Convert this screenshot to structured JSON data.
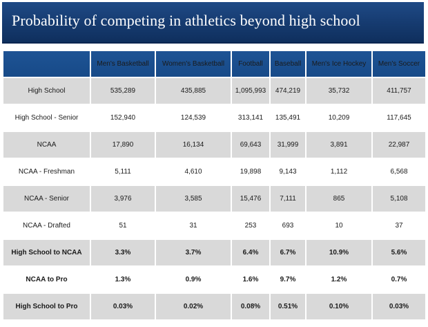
{
  "title": "Probability of competing in athletics beyond high school",
  "columns": [
    "",
    "Men's Basketball",
    "Women's Basketball",
    "Football",
    "Baseball",
    "Men's Ice Hockey",
    "Men's Soccer"
  ],
  "rows": [
    {
      "label": "High School",
      "values": [
        "535,289",
        "435,885",
        "1,095,993",
        "474,219",
        "35,732",
        "411,757"
      ]
    },
    {
      "label": "High School - Senior",
      "values": [
        "152,940",
        "124,539",
        "313,141",
        "135,491",
        "10,209",
        "117,645"
      ]
    },
    {
      "label": "NCAA",
      "values": [
        "17,890",
        "16,134",
        "69,643",
        "31,999",
        "3,891",
        "22,987"
      ]
    },
    {
      "label": "NCAA - Freshman",
      "values": [
        "5,111",
        "4,610",
        "19,898",
        "9,143",
        "1,112",
        "6,568"
      ]
    },
    {
      "label": "NCAA - Senior",
      "values": [
        "3,976",
        "3,585",
        "15,476",
        "7,111",
        "865",
        "5,108"
      ]
    },
    {
      "label": "NCAA - Drafted",
      "values": [
        "51",
        "31",
        "253",
        "693",
        "10",
        "37"
      ]
    },
    {
      "label": "High School to NCAA",
      "values": [
        "3.3%",
        "3.7%",
        "6.4%",
        "6.7%",
        "10.9%",
        "5.6%"
      ]
    },
    {
      "label": "NCAA to Pro",
      "values": [
        "1.3%",
        "0.9%",
        "1.6%",
        "9.7%",
        "1.2%",
        "0.7%"
      ]
    },
    {
      "label": "High School to Pro",
      "values": [
        "0.03%",
        "0.02%",
        "0.08%",
        "0.51%",
        "0.10%",
        "0.03%"
      ]
    }
  ]
}
